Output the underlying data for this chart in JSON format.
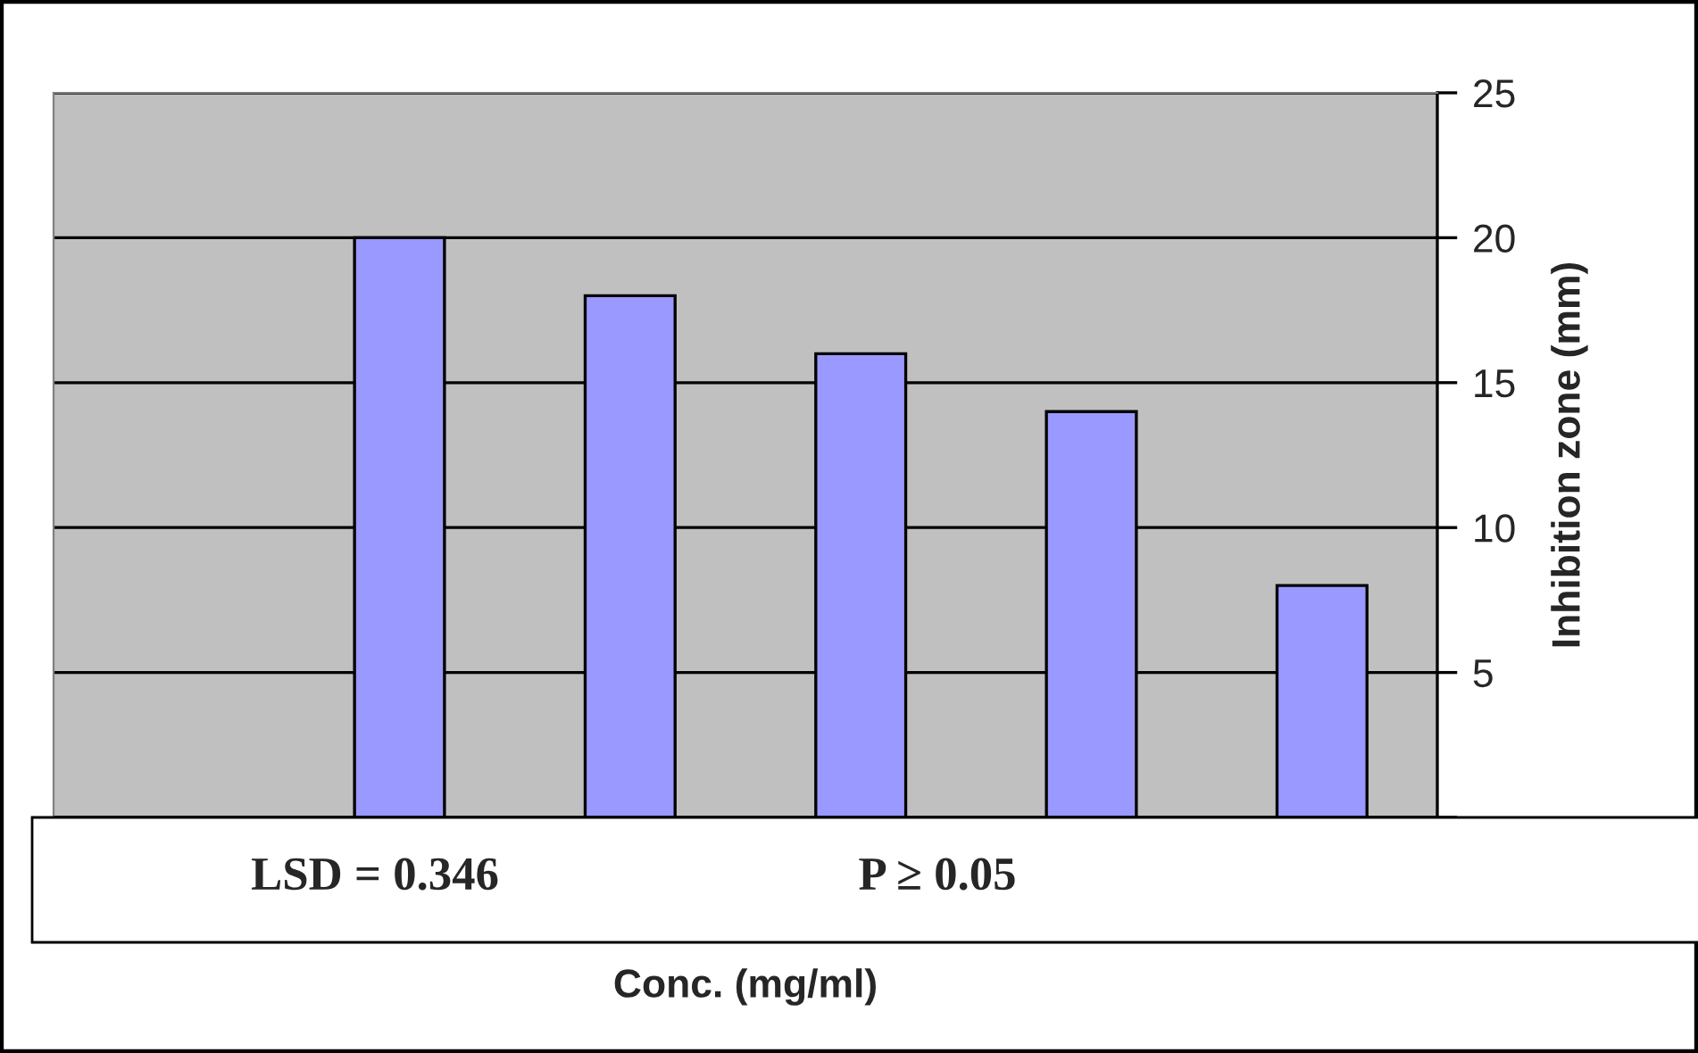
{
  "chart_data": {
    "type": "bar",
    "ylabel": "Inhibition zone (mm)",
    "xlabel": "Conc. (mg/ml)",
    "categories": [
      null,
      null,
      null,
      null,
      null,
      null
    ],
    "values": [
      null,
      20,
      18,
      16,
      14,
      8
    ],
    "color": "#9999ff",
    "ylim": [
      0,
      25
    ],
    "yticks": [
      {
        "value": 0,
        "label": null
      },
      5,
      10,
      15,
      20,
      25
    ],
    "grid": "y",
    "annotations": [
      "LSD = 0.346",
      "P ≥ 0.05"
    ]
  }
}
